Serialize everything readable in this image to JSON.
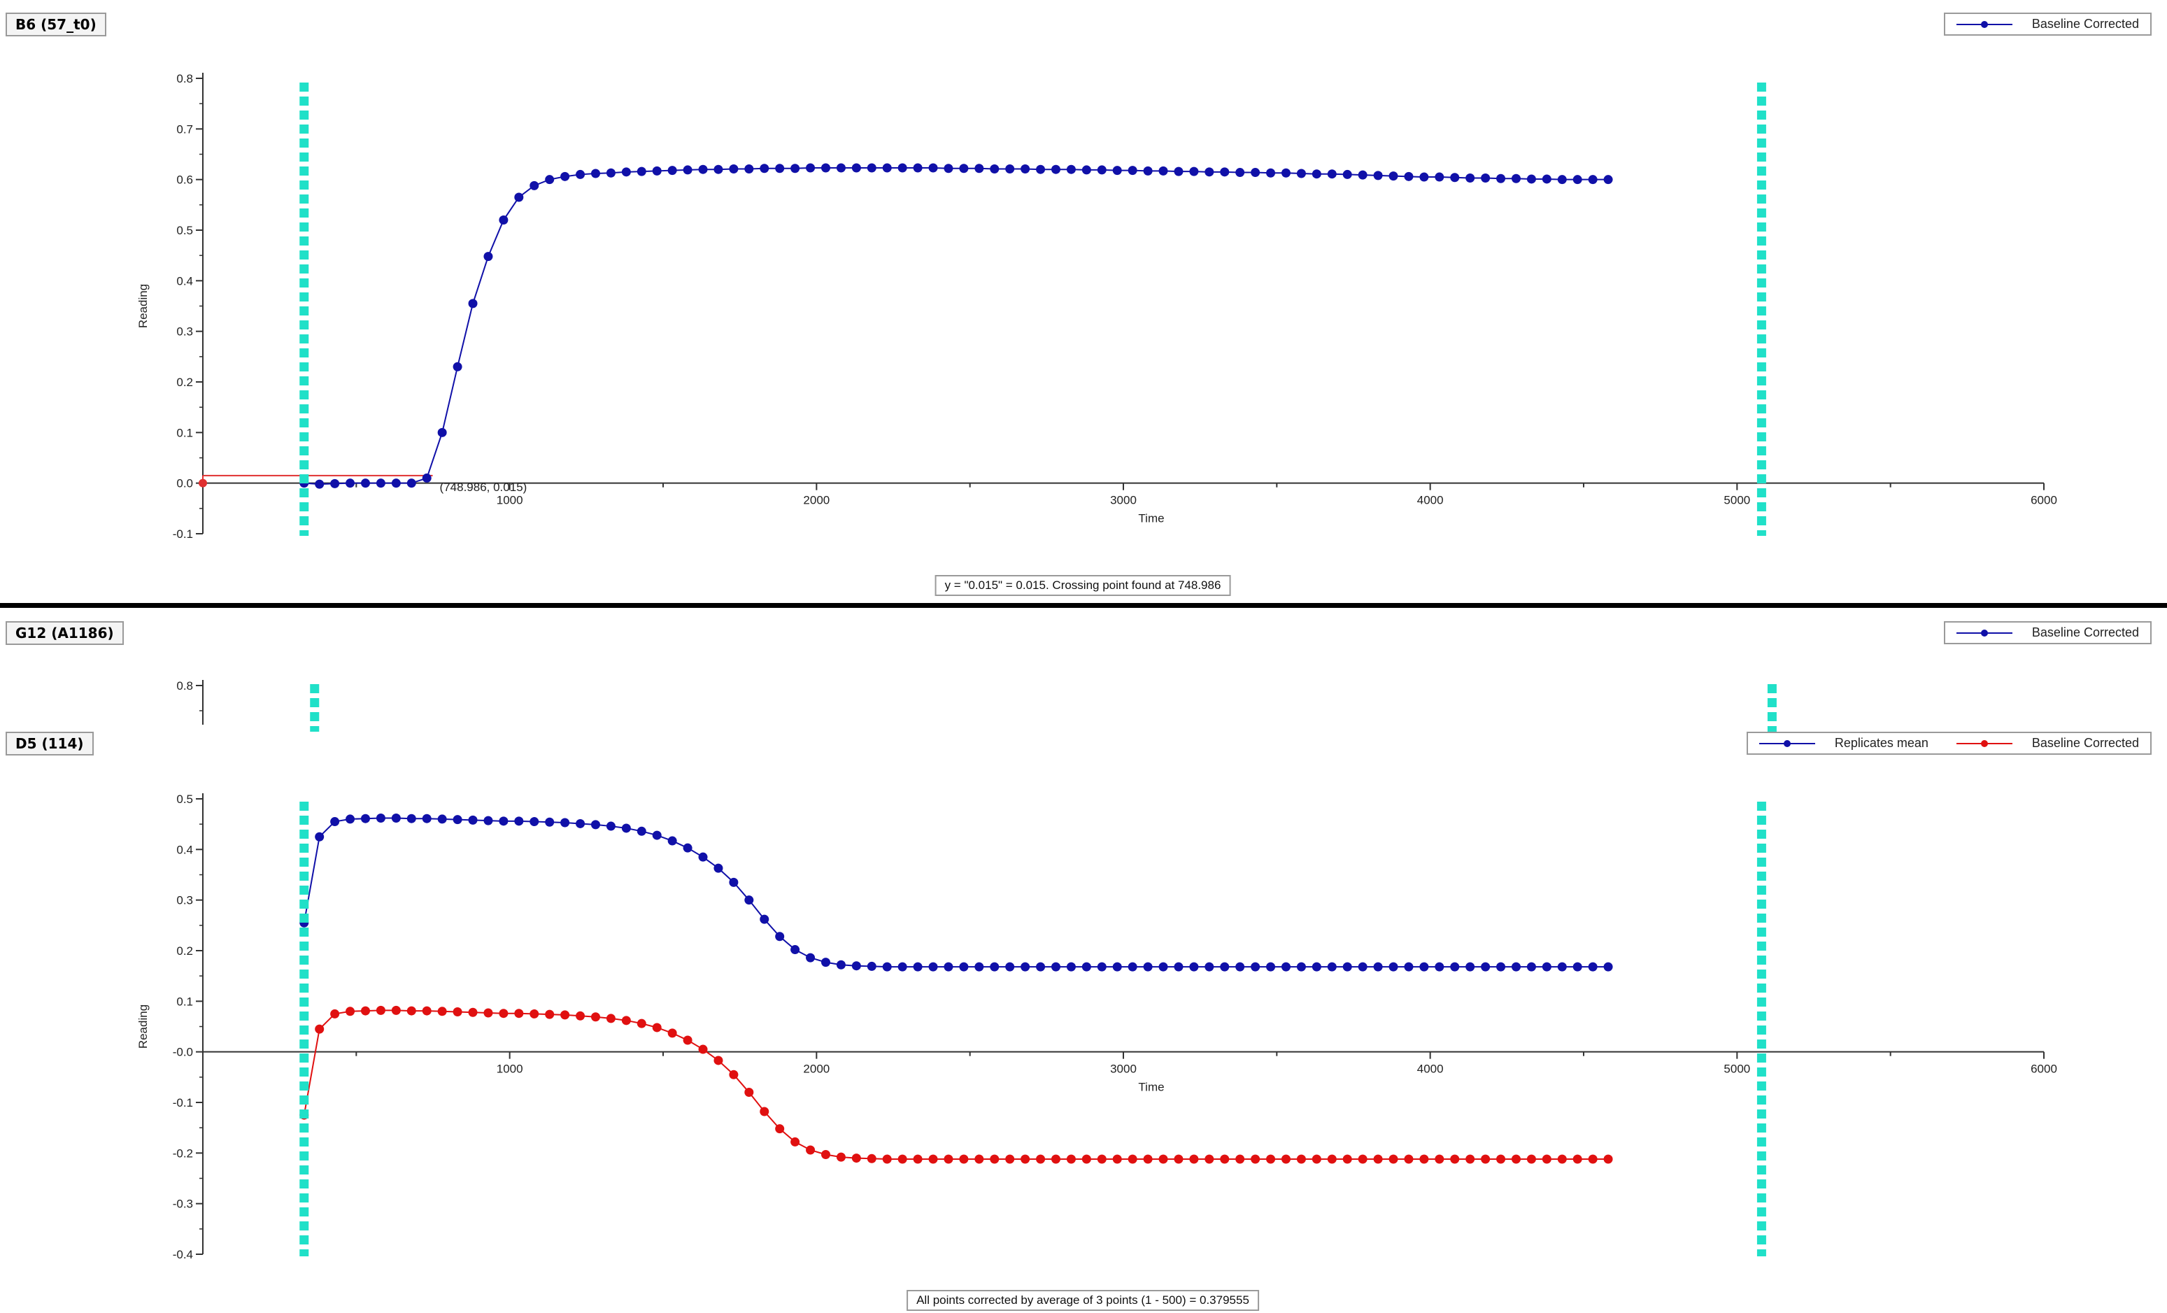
{
  "top_panel": {
    "title": "B6 (57_t0)",
    "status": "y = \"0.015\" = 0.015. Crossing point found at 748.986"
  },
  "middle_panel": {
    "title": "G12 (A1186)"
  },
  "bottom_panel": {
    "title": "D5 (114)",
    "status": "All points corrected by average of 3 points (1 - 500) = 0.379555"
  },
  "colors": {
    "series_blue": "#1010a8",
    "series_red": "#e01010",
    "marker_line": "#20e0c8",
    "threshold": "#e03030"
  },
  "chart_data": [
    {
      "id": "top",
      "type": "line",
      "xlabel": "Time",
      "ylabel": "Reading",
      "xlim": [
        0,
        6000
      ],
      "ylim": [
        -0.1,
        0.8
      ],
      "x_ticks": [
        1000,
        2000,
        3000,
        4000,
        5000,
        6000
      ],
      "x_tick_labels": [
        "1000",
        "2000",
        "3000",
        "4000",
        "5000",
        "6000"
      ],
      "y_ticks": [
        -0.1,
        0.0,
        0.1,
        0.2,
        0.3,
        0.4,
        0.5,
        0.6,
        0.7,
        0.8
      ],
      "y_tick_labels": [
        "-0.1",
        "0.0",
        "0.1",
        "0.2",
        "0.3",
        "0.4",
        "0.5",
        "0.6",
        "0.7",
        "0.8"
      ],
      "grid": false,
      "legend_position": "top-right",
      "vertical_markers": [
        330,
        5080
      ],
      "threshold": {
        "y": 0.015,
        "x_range": [
          0,
          748.986
        ]
      },
      "threshold_start_value": [
        0,
        0.0
      ],
      "annotation": {
        "text": "(748.986, 0.015)",
        "x": 748.986,
        "y": 0.015
      },
      "series": [
        {
          "name": "Baseline Corrected",
          "color": "#1010a8",
          "x0": 330,
          "dx": 50,
          "values": [
            0.0,
            -0.002,
            -0.001,
            0.0,
            0.0,
            0.0,
            0.0,
            0.0,
            0.01,
            0.1,
            0.23,
            0.355,
            0.448,
            0.52,
            0.565,
            0.588,
            0.6,
            0.606,
            0.61,
            0.612,
            0.613,
            0.615,
            0.616,
            0.617,
            0.618,
            0.619,
            0.62,
            0.62,
            0.621,
            0.621,
            0.622,
            0.622,
            0.622,
            0.623,
            0.623,
            0.623,
            0.623,
            0.623,
            0.623,
            0.623,
            0.623,
            0.623,
            0.622,
            0.622,
            0.622,
            0.621,
            0.621,
            0.621,
            0.62,
            0.62,
            0.62,
            0.619,
            0.619,
            0.618,
            0.618,
            0.617,
            0.617,
            0.616,
            0.616,
            0.615,
            0.615,
            0.614,
            0.614,
            0.613,
            0.613,
            0.612,
            0.611,
            0.611,
            0.61,
            0.609,
            0.608,
            0.607,
            0.606,
            0.605,
            0.605,
            0.604,
            0.603,
            0.603,
            0.602,
            0.602,
            0.601,
            0.601,
            0.6,
            0.6,
            0.6,
            0.6
          ]
        }
      ]
    },
    {
      "id": "middle",
      "type": "line",
      "ylim": [
        -0.1,
        0.8
      ],
      "y_ticks": [
        0.8
      ],
      "y_tick_labels": [
        "0.8"
      ],
      "vertical_markers": [
        330,
        5080
      ],
      "series": [
        {
          "name": "Baseline Corrected",
          "color": "#1010a8",
          "values": []
        }
      ]
    },
    {
      "id": "bottom",
      "type": "line",
      "xlabel": "Time",
      "ylabel": "Reading",
      "xlim": [
        0,
        6000
      ],
      "ylim": [
        -0.4,
        0.5
      ],
      "x_ticks": [
        1000,
        2000,
        3000,
        4000,
        5000,
        6000
      ],
      "x_tick_labels": [
        "1000",
        "2000",
        "3000",
        "4000",
        "5000",
        "6000"
      ],
      "y_ticks": [
        -0.4,
        -0.3,
        -0.2,
        -0.1,
        0.0,
        0.1,
        0.2,
        0.3,
        0.4,
        0.5
      ],
      "y_tick_labels": [
        "-0.4",
        "-0.3",
        "-0.2",
        "-0.1",
        "-0.0",
        "0.1",
        "0.2",
        "0.3",
        "0.4",
        "0.5"
      ],
      "grid": false,
      "legend_position": "top-right",
      "vertical_markers": [
        330,
        5080
      ],
      "series": [
        {
          "name": "Replicates mean",
          "color": "#1010a8",
          "x0": 330,
          "dx": 50,
          "values": [
            0.255,
            0.425,
            0.455,
            0.46,
            0.461,
            0.462,
            0.462,
            0.461,
            0.461,
            0.46,
            0.459,
            0.458,
            0.457,
            0.456,
            0.456,
            0.455,
            0.454,
            0.453,
            0.451,
            0.449,
            0.446,
            0.442,
            0.436,
            0.428,
            0.417,
            0.403,
            0.385,
            0.363,
            0.335,
            0.3,
            0.262,
            0.228,
            0.202,
            0.186,
            0.177,
            0.172,
            0.17,
            0.169,
            0.168,
            0.168,
            0.168,
            0.168,
            0.168,
            0.168,
            0.168,
            0.168,
            0.168,
            0.168,
            0.168,
            0.168,
            0.168,
            0.168,
            0.168,
            0.168,
            0.168,
            0.168,
            0.168,
            0.168,
            0.168,
            0.168,
            0.168,
            0.168,
            0.168,
            0.168,
            0.168,
            0.168,
            0.168,
            0.168,
            0.168,
            0.168,
            0.168,
            0.168,
            0.168,
            0.168,
            0.168,
            0.168,
            0.168,
            0.168,
            0.168,
            0.168,
            0.168,
            0.168,
            0.168,
            0.168,
            0.168,
            0.168
          ]
        },
        {
          "name": "Baseline Corrected",
          "color": "#e01010",
          "x0": 330,
          "dx": 50,
          "values": [
            -0.125,
            0.045,
            0.075,
            0.08,
            0.081,
            0.082,
            0.082,
            0.081,
            0.081,
            0.08,
            0.079,
            0.078,
            0.077,
            0.076,
            0.076,
            0.075,
            0.074,
            0.073,
            0.071,
            0.069,
            0.066,
            0.062,
            0.056,
            0.048,
            0.037,
            0.023,
            0.005,
            -0.017,
            -0.045,
            -0.08,
            -0.118,
            -0.152,
            -0.178,
            -0.194,
            -0.203,
            -0.208,
            -0.21,
            -0.211,
            -0.212,
            -0.212,
            -0.212,
            -0.212,
            -0.212,
            -0.212,
            -0.212,
            -0.212,
            -0.212,
            -0.212,
            -0.212,
            -0.212,
            -0.212,
            -0.212,
            -0.212,
            -0.212,
            -0.212,
            -0.212,
            -0.212,
            -0.212,
            -0.212,
            -0.212,
            -0.212,
            -0.212,
            -0.212,
            -0.212,
            -0.212,
            -0.212,
            -0.212,
            -0.212,
            -0.212,
            -0.212,
            -0.212,
            -0.212,
            -0.212,
            -0.212,
            -0.212,
            -0.212,
            -0.212,
            -0.212,
            -0.212,
            -0.212,
            -0.212,
            -0.212,
            -0.212,
            -0.212,
            -0.212,
            -0.212
          ]
        }
      ]
    }
  ]
}
